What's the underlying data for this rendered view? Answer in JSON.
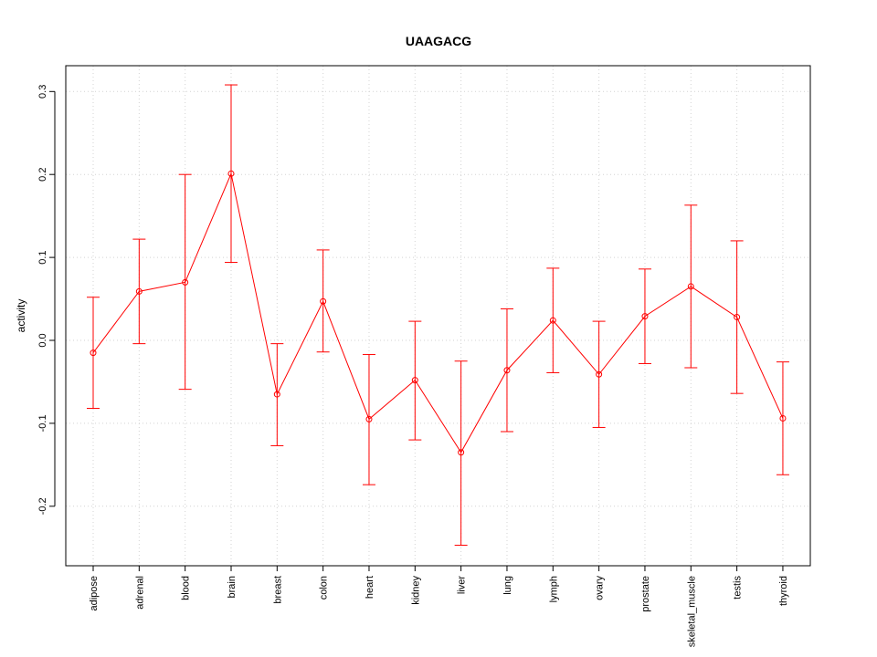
{
  "chart_data": {
    "type": "line",
    "title": "UAAGACG",
    "xlabel": "",
    "ylabel": "activity",
    "ylim": [
      -0.27,
      0.33
    ],
    "yticks": [
      -0.2,
      -0.1,
      0.0,
      0.1,
      0.2,
      0.3
    ],
    "ytick_labels": [
      "-0.2",
      "-0.1",
      "0.0",
      "0.1",
      "0.2",
      "0.3"
    ],
    "grid": true,
    "color": "#ff0000",
    "categories": [
      "adipose",
      "adrenal",
      "blood",
      "brain",
      "breast",
      "colon",
      "heart",
      "kidney",
      "liver",
      "lung",
      "lymph",
      "ovary",
      "prostate",
      "skeletal_muscle",
      "testis",
      "thyroid"
    ],
    "values": [
      -0.015,
      0.059,
      0.07,
      0.201,
      -0.065,
      0.047,
      -0.095,
      -0.048,
      -0.135,
      -0.036,
      0.024,
      -0.041,
      0.029,
      0.065,
      0.028,
      -0.094
    ],
    "upper": [
      0.052,
      0.122,
      0.2,
      0.308,
      -0.004,
      0.109,
      -0.017,
      0.023,
      -0.025,
      0.038,
      0.087,
      0.023,
      0.086,
      0.163,
      0.12,
      -0.026
    ],
    "lower": [
      -0.082,
      -0.004,
      -0.059,
      0.094,
      -0.127,
      -0.014,
      -0.174,
      -0.12,
      -0.247,
      -0.11,
      -0.039,
      -0.105,
      -0.028,
      -0.033,
      -0.064,
      -0.162
    ]
  }
}
